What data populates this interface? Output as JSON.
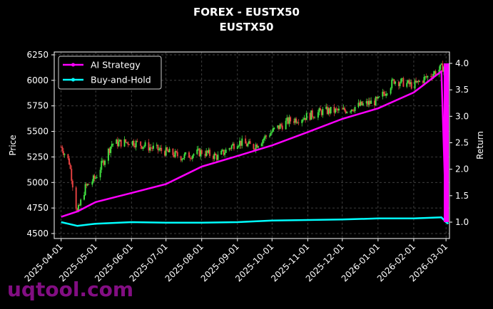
{
  "title": {
    "line1": "FOREX - EUSTX50",
    "line2": "EUSTX50"
  },
  "watermark": "uqtool.com",
  "colors": {
    "background": "#000000",
    "ai_strategy": "#ff00ff",
    "buy_and_hold": "#00ffff",
    "candle_up": "#44ee44",
    "candle_down": "#ee4444",
    "grid": "#555555",
    "watermark": "#8b0f8b"
  },
  "chart_data": {
    "type": "line",
    "title": "FOREX - EUSTX50\nEUSTX50",
    "xlabel": "",
    "ylabel_left": "Price",
    "ylabel_right": "Return",
    "ylim_left": [
      4450,
      6280
    ],
    "ylim_right": [
      0.85,
      4.15
    ],
    "grid": true,
    "legend_position": "upper left",
    "x_ticks": [
      "2025-04-01",
      "2025-05-01",
      "2025-06-01",
      "2025-07-01",
      "2025-08-01",
      "2025-09-01",
      "2025-10-01",
      "2025-11-01",
      "2025-12-01",
      "2026-01-01",
      "2026-02-01",
      "2026-03-01"
    ],
    "y_ticks_left": [
      4500,
      4750,
      5000,
      5250,
      5500,
      5750,
      6000,
      6250
    ],
    "y_ticks_right": [
      1.0,
      1.5,
      2.0,
      2.5,
      3.0,
      3.5,
      4.0
    ],
    "legend": [
      "AI Strategy",
      "Buy-and-Hold"
    ],
    "price_candles_approx": {
      "x": [
        "2025-04-01",
        "2025-04-08",
        "2025-04-15",
        "2025-04-22",
        "2025-05-01",
        "2025-05-15",
        "2025-06-01",
        "2025-06-15",
        "2025-07-01",
        "2025-07-15",
        "2025-08-01",
        "2025-08-15",
        "2025-09-01",
        "2025-09-15",
        "2025-10-01",
        "2025-10-15",
        "2025-11-01",
        "2025-11-15",
        "2025-12-01",
        "2025-12-15",
        "2026-01-01",
        "2026-01-15",
        "2026-02-01",
        "2026-02-15",
        "2026-03-01"
      ],
      "close": [
        5350,
        5200,
        4700,
        4950,
        5050,
        5380,
        5400,
        5350,
        5300,
        5250,
        5300,
        5250,
        5400,
        5350,
        5500,
        5600,
        5650,
        5700,
        5700,
        5750,
        5800,
        6000,
        5950,
        6050,
        6150
      ]
    },
    "series": [
      {
        "name": "AI Strategy",
        "axis": "right",
        "x": [
          "2025-04-01",
          "2025-04-15",
          "2025-05-01",
          "2025-06-01",
          "2025-07-01",
          "2025-08-01",
          "2025-09-01",
          "2025-10-01",
          "2025-11-01",
          "2025-12-01",
          "2026-01-01",
          "2026-02-01",
          "2026-02-25",
          "2026-03-01",
          "2026-03-03"
        ],
        "values": [
          1.1,
          1.2,
          1.38,
          1.55,
          1.72,
          2.05,
          2.25,
          2.45,
          2.7,
          2.95,
          3.15,
          3.45,
          3.85,
          1.05,
          4.0
        ]
      },
      {
        "name": "Buy-and-Hold",
        "axis": "right",
        "x": [
          "2025-04-01",
          "2025-04-15",
          "2025-05-01",
          "2025-06-01",
          "2025-07-01",
          "2025-08-01",
          "2025-09-01",
          "2025-10-01",
          "2025-11-01",
          "2025-12-01",
          "2026-01-01",
          "2026-02-01",
          "2026-02-25",
          "2026-03-01",
          "2026-03-03"
        ],
        "values": [
          1.0,
          0.93,
          0.97,
          1.0,
          0.99,
          0.99,
          1.0,
          1.03,
          1.04,
          1.05,
          1.07,
          1.07,
          1.09,
          1.0,
          0.97
        ]
      }
    ]
  }
}
